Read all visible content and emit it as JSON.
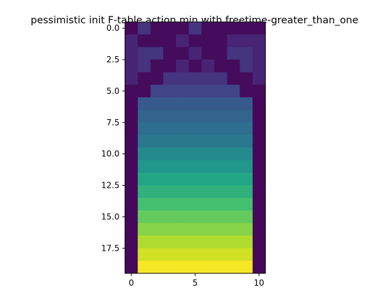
{
  "chart_data": {
    "type": "heatmap",
    "title": "pessimistic init F-table action min with freetime-greater_than_one",
    "xlabel": "",
    "ylabel": "",
    "colormap": "viridis",
    "vmin": 0,
    "vmax": 1,
    "grid": false,
    "n_rows": 20,
    "n_cols": 11,
    "xlim": [
      -0.5,
      10.5
    ],
    "ylim": [
      19.5,
      -0.5
    ],
    "x_ticks": [
      0,
      5,
      10
    ],
    "x_tick_labels": [
      "0",
      "5",
      "10"
    ],
    "y_ticks": [
      0,
      2.5,
      5,
      7.5,
      10,
      12.5,
      15,
      17.5
    ],
    "y_tick_labels": [
      "0.0",
      "2.5",
      "5.0",
      "7.5",
      "10.0",
      "12.5",
      "15.0",
      "17.5"
    ],
    "z": [
      [
        0.02,
        0.15,
        0.03,
        0.03,
        0.03,
        0.15,
        0.03,
        0.03,
        0.03,
        0.03,
        0.03
      ],
      [
        0.1,
        0.03,
        0.03,
        0.03,
        0.1,
        0.03,
        0.03,
        0.03,
        0.1,
        0.1,
        0.1
      ],
      [
        0.1,
        0.15,
        0.15,
        0.03,
        0.03,
        0.1,
        0.03,
        0.03,
        0.15,
        0.15,
        0.1
      ],
      [
        0.1,
        0.15,
        0.03,
        0.03,
        0.1,
        0.03,
        0.1,
        0.03,
        0.03,
        0.15,
        0.1
      ],
      [
        0.1,
        0.03,
        0.03,
        0.15,
        0.15,
        0.15,
        0.15,
        0.15,
        0.03,
        0.03,
        0.1
      ],
      [
        0.03,
        0.03,
        0.2,
        0.2,
        0.2,
        0.2,
        0.2,
        0.2,
        0.2,
        0.03,
        0.03
      ],
      [
        0.02,
        0.28,
        0.28,
        0.28,
        0.28,
        0.28,
        0.28,
        0.28,
        0.28,
        0.28,
        0.02
      ],
      [
        0.02,
        0.32,
        0.32,
        0.32,
        0.32,
        0.32,
        0.32,
        0.32,
        0.32,
        0.32,
        0.02
      ],
      [
        0.02,
        0.36,
        0.36,
        0.36,
        0.36,
        0.36,
        0.36,
        0.36,
        0.36,
        0.36,
        0.02
      ],
      [
        0.02,
        0.4,
        0.4,
        0.4,
        0.4,
        0.4,
        0.4,
        0.4,
        0.4,
        0.4,
        0.02
      ],
      [
        0.02,
        0.47,
        0.47,
        0.47,
        0.47,
        0.47,
        0.47,
        0.47,
        0.47,
        0.47,
        0.02
      ],
      [
        0.02,
        0.52,
        0.52,
        0.52,
        0.52,
        0.52,
        0.52,
        0.52,
        0.52,
        0.52,
        0.02
      ],
      [
        0.02,
        0.59,
        0.59,
        0.59,
        0.59,
        0.59,
        0.59,
        0.59,
        0.59,
        0.59,
        0.02
      ],
      [
        0.02,
        0.64,
        0.64,
        0.64,
        0.64,
        0.64,
        0.64,
        0.64,
        0.64,
        0.64,
        0.02
      ],
      [
        0.02,
        0.7,
        0.7,
        0.7,
        0.7,
        0.7,
        0.7,
        0.7,
        0.7,
        0.7,
        0.02
      ],
      [
        0.02,
        0.76,
        0.76,
        0.76,
        0.76,
        0.76,
        0.76,
        0.76,
        0.76,
        0.76,
        0.02
      ],
      [
        0.02,
        0.82,
        0.82,
        0.82,
        0.82,
        0.82,
        0.82,
        0.82,
        0.82,
        0.82,
        0.02
      ],
      [
        0.02,
        0.88,
        0.88,
        0.88,
        0.88,
        0.88,
        0.88,
        0.88,
        0.88,
        0.88,
        0.02
      ],
      [
        0.02,
        0.93,
        0.93,
        0.93,
        0.93,
        0.93,
        0.93,
        0.93,
        0.93,
        0.93,
        0.02
      ],
      [
        0.02,
        0.99,
        0.99,
        0.99,
        0.99,
        0.99,
        0.99,
        0.99,
        0.99,
        0.99,
        0.02
      ]
    ]
  }
}
